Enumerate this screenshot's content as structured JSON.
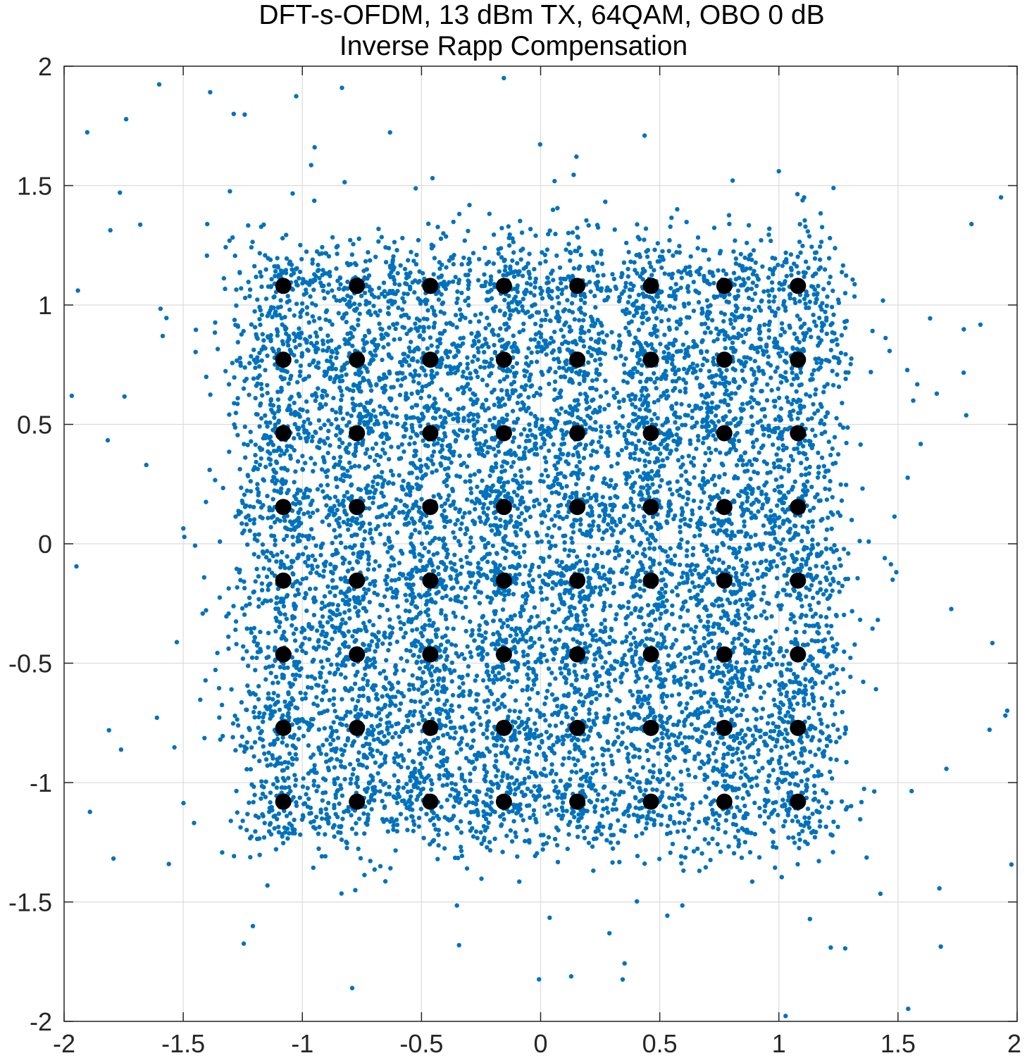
{
  "chart_data": {
    "type": "scatter",
    "title": "DFT-s-OFDM, 13 dBm TX, 64QAM, OBO 0 dB",
    "subtitle": "Inverse Rapp Compensation",
    "xlabel": "",
    "ylabel": "",
    "xlim": [
      -2,
      2
    ],
    "ylim": [
      -2,
      2
    ],
    "xticks": [
      -2,
      -1.5,
      -1,
      -0.5,
      0,
      0.5,
      1,
      1.5,
      2
    ],
    "yticks": [
      -2,
      -1.5,
      -1,
      -0.5,
      0,
      0.5,
      1,
      1.5,
      2
    ],
    "xtick_labels": [
      "-2",
      "-1.5",
      "-1",
      "-0.5",
      "0",
      "0.5",
      "1",
      "1.5",
      "2"
    ],
    "ytick_labels": [
      "-2",
      "-1.5",
      "-1",
      "-0.5",
      "0",
      "0.5",
      "1",
      "1.5",
      "2"
    ],
    "grid": true,
    "colors": {
      "received": "#0072BD",
      "reference": "#000000",
      "grid": "#dcdcdc"
    },
    "reference_levels": [
      -1.08,
      -0.771,
      -0.463,
      -0.154,
      0.154,
      0.463,
      0.771,
      1.08
    ],
    "received_spread_std": 0.085
  }
}
